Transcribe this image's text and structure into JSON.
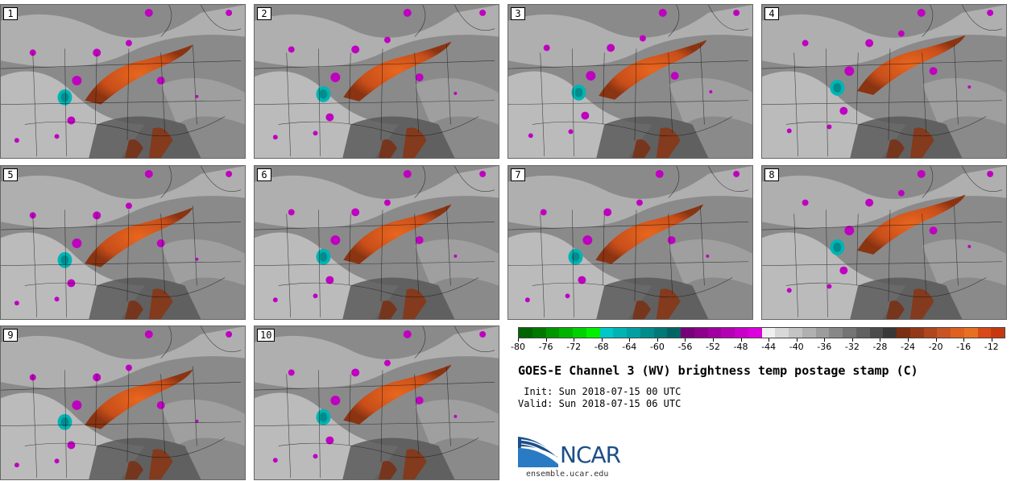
{
  "panels": [
    {
      "label": "1"
    },
    {
      "label": "2"
    },
    {
      "label": "3"
    },
    {
      "label": "4"
    },
    {
      "label": "5"
    },
    {
      "label": "6"
    },
    {
      "label": "7"
    },
    {
      "label": "8"
    },
    {
      "label": "9"
    },
    {
      "label": "10"
    }
  ],
  "legend": {
    "colors": [
      "#006400",
      "#007800",
      "#009600",
      "#00b400",
      "#00d200",
      "#00f000",
      "#00c8c8",
      "#00b4b4",
      "#00a0a0",
      "#008c8c",
      "#007878",
      "#006464",
      "#780078",
      "#8c008c",
      "#a000a0",
      "#b400b4",
      "#c800c8",
      "#dc00dc",
      "#f0f0f0",
      "#d8d8d8",
      "#c4c4c4",
      "#b0b0b0",
      "#9c9c9c",
      "#888888",
      "#747474",
      "#606060",
      "#4c4c4c",
      "#383838",
      "#7a2e12",
      "#94381a",
      "#ae4620",
      "#c85424",
      "#e06020",
      "#e87022",
      "#d84818",
      "#c83810"
    ],
    "ticks": [
      "-80",
      "-76",
      "-72",
      "-68",
      "-64",
      "-60",
      "-56",
      "-52",
      "-48",
      "-44",
      "-40",
      "-36",
      "-32",
      "-28",
      "-24",
      "-20",
      "-16",
      "-12"
    ]
  },
  "title": "GOES-E Channel 3 (WV) brightness temp postage stamp (C)",
  "init_label": " Init:",
  "init_value": "Sun 2018-07-15 00 UTC",
  "valid_label": "Valid:",
  "valid_value": "Sun 2018-07-15 06 UTC",
  "logo": {
    "name": "NCAR",
    "url": "ensemble.ucar.edu"
  }
}
